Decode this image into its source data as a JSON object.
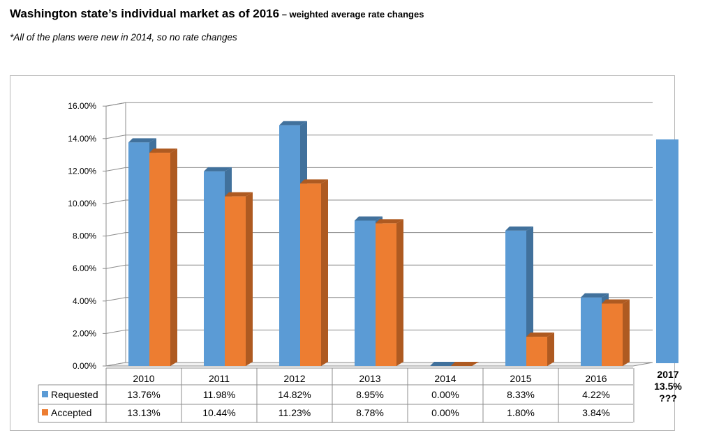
{
  "header": {
    "title_main": "Washington state’s individual market as of 2016",
    "title_sub": " – weighted average rate changes",
    "note": "*All of the plans were new in 2014, so no rate changes"
  },
  "projection": {
    "year": "2017",
    "value": 13.5,
    "value_label": "13.5%",
    "note": "???",
    "color": "#5b9bd5"
  },
  "chart_data": {
    "type": "bar",
    "categories": [
      "2010",
      "2011",
      "2012",
      "2013",
      "2014",
      "2015",
      "2016"
    ],
    "series": [
      {
        "name": "Requested",
        "values": [
          13.76,
          11.98,
          14.82,
          8.95,
          0.0,
          8.33,
          4.22
        ],
        "labels": [
          "13.76%",
          "11.98%",
          "14.82%",
          "8.95%",
          "0.00%",
          "8.33%",
          "4.22%"
        ],
        "color": "#5b9bd5",
        "side_color": "#41719c"
      },
      {
        "name": "Accepted",
        "values": [
          13.13,
          10.44,
          11.23,
          8.78,
          0.0,
          1.8,
          3.84
        ],
        "labels": [
          "13.13%",
          "10.44%",
          "11.23%",
          "8.78%",
          "0.00%",
          "1.80%",
          "3.84%"
        ],
        "color": "#ed7d31",
        "side_color": "#ae5a21"
      }
    ],
    "y_ticks": [
      "0.00%",
      "2.00%",
      "4.00%",
      "6.00%",
      "8.00%",
      "10.00%",
      "12.00%",
      "14.00%",
      "16.00%"
    ],
    "ylim": [
      0,
      16
    ],
    "grid": true,
    "legend": "data-table",
    "three_d": true
  }
}
